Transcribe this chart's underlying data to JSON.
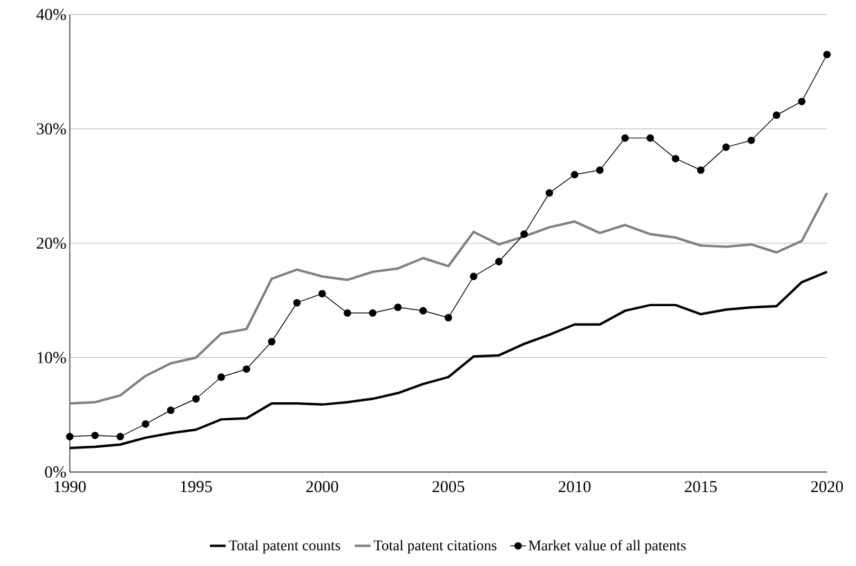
{
  "chart_data": {
    "type": "line",
    "x": [
      1990,
      1991,
      1992,
      1993,
      1994,
      1995,
      1996,
      1997,
      1998,
      1999,
      2000,
      2001,
      2002,
      2003,
      2004,
      2005,
      2006,
      2007,
      2008,
      2009,
      2010,
      2011,
      2012,
      2013,
      2014,
      2015,
      2016,
      2017,
      2018,
      2019,
      2020
    ],
    "series": [
      {
        "name": "Total patent counts",
        "color": "#000000",
        "marker": "none",
        "values": [
          2.1,
          2.2,
          2.4,
          3.0,
          3.4,
          3.7,
          4.6,
          4.7,
          6.0,
          6.0,
          5.9,
          6.1,
          6.4,
          6.9,
          7.7,
          8.3,
          10.1,
          10.2,
          11.2,
          12.0,
          12.9,
          12.9,
          14.1,
          14.6,
          14.6,
          13.8,
          14.2,
          14.4,
          14.5,
          16.6,
          17.5
        ]
      },
      {
        "name": "Total patent citations",
        "color": "#808080",
        "marker": "none",
        "values": [
          6.0,
          6.1,
          6.7,
          8.4,
          9.5,
          10.0,
          12.1,
          12.5,
          16.9,
          17.7,
          17.1,
          16.8,
          17.5,
          17.8,
          18.7,
          18.0,
          21.0,
          19.9,
          20.6,
          21.4,
          21.9,
          20.9,
          21.6,
          20.8,
          20.5,
          19.8,
          19.7,
          19.9,
          19.2,
          20.2,
          24.4
        ]
      },
      {
        "name": "Market value of all patents",
        "color": "#000000",
        "marker": "circle",
        "values": [
          3.1,
          3.2,
          3.1,
          4.2,
          5.4,
          6.4,
          8.3,
          9.0,
          11.4,
          14.8,
          15.6,
          13.9,
          13.9,
          14.4,
          14.1,
          13.5,
          17.1,
          18.4,
          20.8,
          24.4,
          26.0,
          26.4,
          29.2,
          29.2,
          27.4,
          26.4,
          28.4,
          29.0,
          31.2,
          32.4,
          36.5
        ]
      }
    ],
    "xlim": [
      1990,
      2020
    ],
    "xticks": [
      1990,
      1995,
      2000,
      2005,
      2010,
      2015,
      2020
    ],
    "ylim": [
      0,
      40
    ],
    "yticks": [
      {
        "value": 0,
        "label": "0%"
      },
      {
        "value": 10,
        "label": "10%"
      },
      {
        "value": 20,
        "label": "20%"
      },
      {
        "value": 30,
        "label": "30%"
      },
      {
        "value": 40,
        "label": "40%"
      }
    ],
    "grid": "y",
    "legend": "bottom"
  }
}
